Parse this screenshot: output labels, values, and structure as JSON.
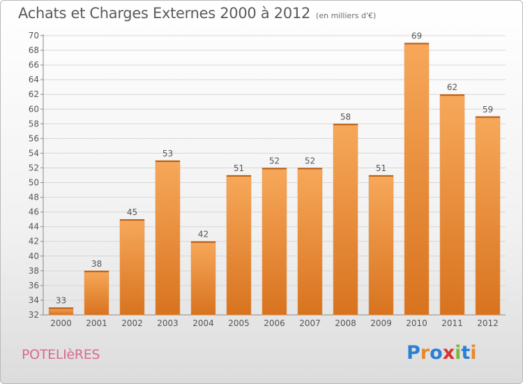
{
  "header": {
    "title": "Achats et Charges Externes 2000 à 2012",
    "subtitle": "(en milliers d'€)"
  },
  "footer": {
    "town": "POTELIèRES",
    "logo_text": "Proxiti",
    "logo_colors": [
      "#2b7fd4",
      "#e8892a",
      "#2b7fd4",
      "#d8342f",
      "#7fb83a",
      "#2b7fd4",
      "#e8892a"
    ]
  },
  "colors": {
    "bar_light": "#f7a85a",
    "bar_dark": "#d8731f",
    "grid": "#d6d6d6",
    "text": "#555555"
  },
  "chart_data": {
    "type": "bar",
    "title": "Achats et Charges Externes 2000 à 2012",
    "subtitle": "(en milliers d'€)",
    "categories": [
      "2000",
      "2001",
      "2002",
      "2003",
      "2004",
      "2005",
      "2006",
      "2007",
      "2008",
      "2009",
      "2010",
      "2011",
      "2012"
    ],
    "values": [
      33,
      38,
      45,
      53,
      42,
      51,
      52,
      52,
      58,
      51,
      69,
      62,
      59
    ],
    "ylim": [
      32,
      70
    ],
    "yticks": [
      32,
      34,
      36,
      38,
      40,
      42,
      44,
      46,
      48,
      50,
      52,
      54,
      56,
      58,
      60,
      62,
      64,
      66,
      68,
      70
    ],
    "xlabel": "",
    "ylabel": "",
    "grid": true
  }
}
